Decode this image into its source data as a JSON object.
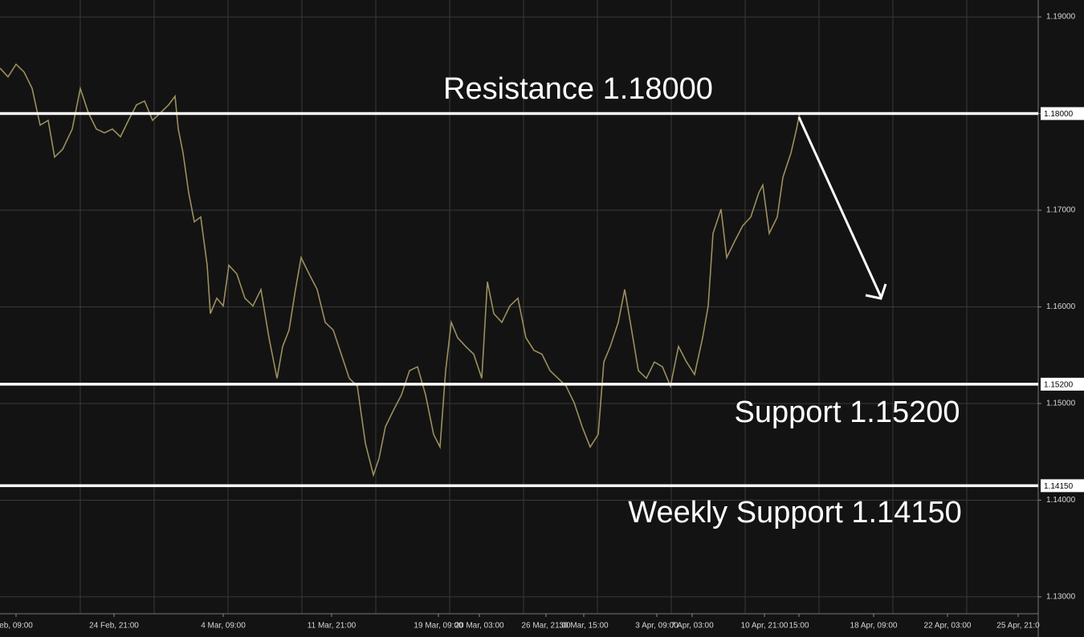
{
  "chart_data": {
    "type": "line",
    "xlim": [
      0,
      1293
    ],
    "ylim": [
      1.12825,
      1.19175
    ],
    "yticks": [
      {
        "value": 1.19,
        "label": "1.19000"
      },
      {
        "value": 1.18,
        "label": "1.18000"
      },
      {
        "value": 1.17,
        "label": "1.17000"
      },
      {
        "value": 1.16,
        "label": "1.16000"
      },
      {
        "value": 1.15,
        "label": "1.15000"
      },
      {
        "value": 1.14,
        "label": "1.14000"
      },
      {
        "value": 1.13,
        "label": "1.13000"
      }
    ],
    "xticks": [
      {
        "value": 20,
        "label": "eb, 09:00"
      },
      {
        "value": 142,
        "label": "24 Feb, 21:00"
      },
      {
        "value": 278,
        "label": "4 Mar, 09:00"
      },
      {
        "value": 413,
        "label": "11 Mar, 21:00"
      },
      {
        "value": 546,
        "label": "19 Mar, 09:00"
      },
      {
        "value": 597,
        "label": "20 Mar, 03:00"
      },
      {
        "value": 680,
        "label": "26 Mar, 21:00"
      },
      {
        "value": 727,
        "label": "30 Mar, 15:00"
      },
      {
        "value": 818,
        "label": "3 Apr, 09:00"
      },
      {
        "value": 862,
        "label": "7 Apr, 03:00"
      },
      {
        "value": 952,
        "label": "10 Apr, 21:00"
      },
      {
        "value": 995,
        "label": "15:00"
      },
      {
        "value": 1088,
        "label": "18 Apr, 09:00"
      },
      {
        "value": 1180,
        "label": "22 Apr, 03:00"
      },
      {
        "value": 1268,
        "label": "25 Apr, 21:0"
      }
    ],
    "xgrid": [
      100,
      192,
      284,
      376,
      468,
      560,
      652,
      744,
      836,
      928,
      1020,
      1112,
      1204
    ],
    "grid": true,
    "series": [
      {
        "color": "#9c8f5e",
        "x": [
          0,
          10,
          20,
          30,
          40,
          50,
          60,
          68,
          78,
          90,
          100,
          110,
          120,
          130,
          140,
          150,
          160,
          170,
          180,
          190,
          200,
          210,
          218,
          222,
          228,
          235,
          242,
          250,
          258,
          262,
          270,
          278,
          285,
          295,
          305,
          315,
          325,
          335,
          345,
          352,
          360,
          368,
          375,
          385,
          395,
          405,
          415,
          425,
          435,
          445,
          455,
          465,
          472,
          480,
          490,
          500,
          510,
          520,
          530,
          540,
          548,
          555,
          562,
          570,
          580,
          590,
          600,
          607,
          615,
          625,
          635,
          645,
          655,
          665,
          675,
          685,
          695,
          705,
          715,
          725,
          735,
          745,
          752,
          760,
          770,
          778,
          785,
          795,
          805,
          815,
          825,
          835,
          845,
          855,
          865,
          875,
          882,
          888,
          898,
          905,
          915,
          925,
          935,
          945,
          950,
          958,
          968,
          975,
          985,
          992,
          996
        ],
        "values": [
          1.1847,
          1.1838,
          1.1851,
          1.1843,
          1.1826,
          1.1788,
          1.1793,
          1.1755,
          1.1763,
          1.1784,
          1.1826,
          1.1801,
          1.1784,
          1.178,
          1.1784,
          1.1776,
          1.1793,
          1.1809,
          1.1813,
          1.1793,
          1.1801,
          1.1809,
          1.1818,
          1.1784,
          1.1759,
          1.1718,
          1.1688,
          1.1693,
          1.1643,
          1.1593,
          1.1609,
          1.1601,
          1.1643,
          1.1634,
          1.1609,
          1.1601,
          1.1618,
          1.1568,
          1.1526,
          1.1559,
          1.1576,
          1.1618,
          1.1651,
          1.1634,
          1.1618,
          1.1584,
          1.1576,
          1.1551,
          1.1526,
          1.1518,
          1.1459,
          1.1426,
          1.1443,
          1.1476,
          1.1493,
          1.1509,
          1.1534,
          1.1538,
          1.1509,
          1.1468,
          1.1455,
          1.1534,
          1.1584,
          1.1568,
          1.1559,
          1.1551,
          1.1526,
          1.1626,
          1.1593,
          1.1584,
          1.1601,
          1.1609,
          1.1568,
          1.1555,
          1.1551,
          1.1534,
          1.1526,
          1.1518,
          1.1501,
          1.1476,
          1.1455,
          1.1468,
          1.1543,
          1.1559,
          1.1584,
          1.1618,
          1.1584,
          1.1534,
          1.1526,
          1.1543,
          1.1538,
          1.1518,
          1.1559,
          1.1543,
          1.153,
          1.1568,
          1.1601,
          1.1676,
          1.1701,
          1.1651,
          1.1668,
          1.1684,
          1.1693,
          1.1718,
          1.1726,
          1.1676,
          1.1693,
          1.1734,
          1.1759,
          1.1784,
          1.1801
        ]
      }
    ],
    "levels": [
      {
        "value": 1.18,
        "label": "1.18000",
        "text": "Resistance 1.18000"
      },
      {
        "value": 1.152,
        "label": "1.15200",
        "text": "Support 1.15200"
      },
      {
        "value": 1.1415,
        "label": "1.14150",
        "text": "Weekly Support 1.14150"
      }
    ]
  }
}
